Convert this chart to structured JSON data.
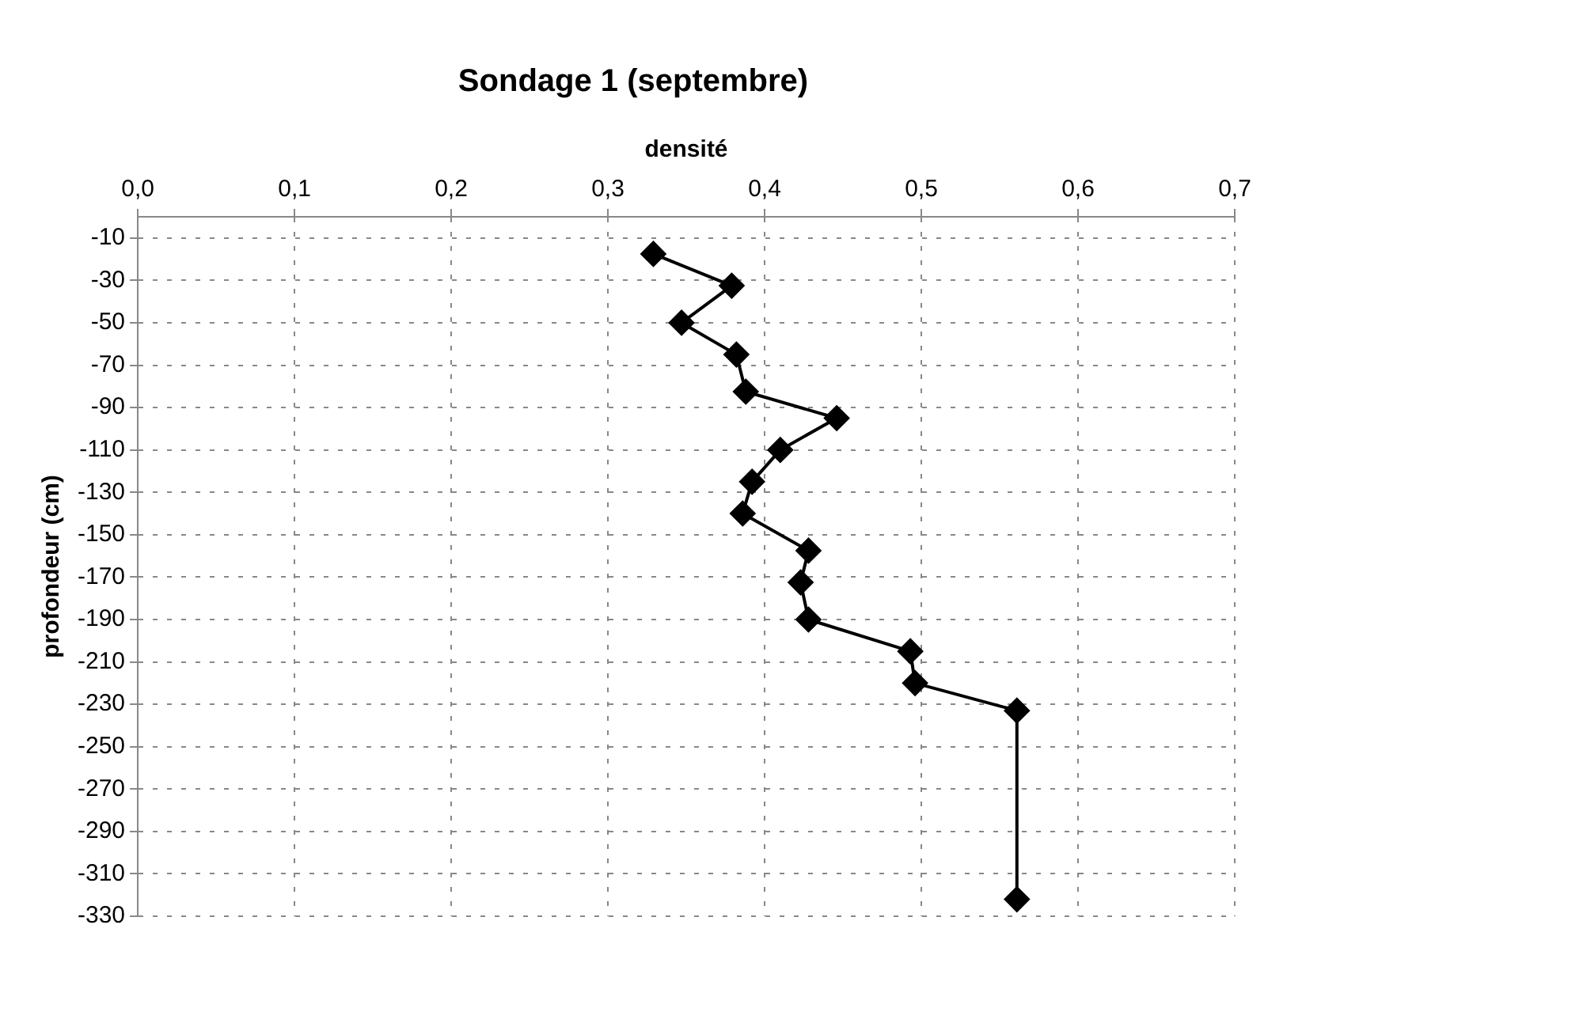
{
  "chart_data": {
    "type": "line",
    "title": "Sondage 1 (septembre)",
    "xlabel": "densité",
    "ylabel": "profondeur (cm)",
    "x": [
      0.329,
      0.379,
      0.347,
      0.382,
      0.388,
      0.446,
      0.41,
      0.392,
      0.386,
      0.428,
      0.423,
      0.428,
      0.493,
      0.496,
      0.561,
      0.561
    ],
    "values": [
      -17.5,
      -32.5,
      -50,
      -65,
      -82.5,
      -95,
      -110,
      -125,
      -140,
      -157.5,
      -172.5,
      -190,
      -205,
      -220,
      -233,
      -322
    ],
    "color": "#000000",
    "marker": "diamond",
    "line_style": "solid",
    "xlim": [
      0,
      0.7
    ],
    "xticks": [
      {
        "value": 0,
        "label": "0,0"
      },
      {
        "value": 0.1,
        "label": "0,1"
      },
      {
        "value": 0.2,
        "label": "0,2"
      },
      {
        "value": 0.3,
        "label": "0,3"
      },
      {
        "value": 0.4,
        "label": "0,4"
      },
      {
        "value": 0.5,
        "label": "0,5"
      },
      {
        "value": 0.6,
        "label": "0,6"
      },
      {
        "value": 0.7,
        "label": "0,7"
      }
    ],
    "ylim": [
      -330,
      0
    ],
    "yticks": [
      -10,
      -30,
      -50,
      -70,
      -90,
      -110,
      -130,
      -150,
      -170,
      -190,
      -210,
      -230,
      -250,
      -270,
      -290,
      -310,
      -330
    ],
    "grid": true,
    "legend": false
  }
}
